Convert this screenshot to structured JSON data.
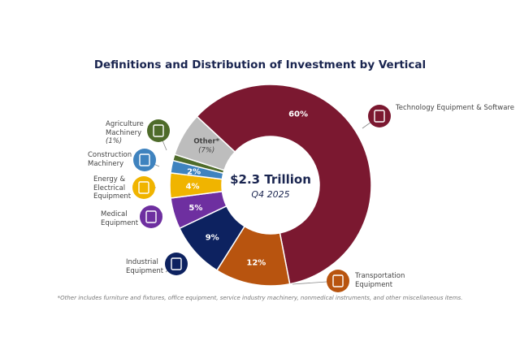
{
  "chart_data": {
    "type": "pie",
    "title": "Definitions and Distribution of Investment by Vertical",
    "center_text": "$2.3 Trillion",
    "center_subtext": "Q4 2025",
    "slices": [
      {
        "name": "Technology Equipment & Software",
        "value": 60,
        "label": "60%",
        "color": "#7b1830",
        "icon": "tablet-gears-icon"
      },
      {
        "name": "Transportation Equipment",
        "value": 12,
        "label": "12%",
        "color": "#b8540f",
        "icon": "truck-icon"
      },
      {
        "name": "Industrial Equipment",
        "value": 9,
        "label": "9%",
        "color": "#0d2260",
        "icon": "factory-icon"
      },
      {
        "name": "Medical Equipment",
        "value": 5,
        "label": "5%",
        "color": "#6e2fa0",
        "icon": "caduceus-icon"
      },
      {
        "name": "Energy & Electrical Equipment",
        "value": 4,
        "label": "4%",
        "color": "#f0b400",
        "icon": "lightning-icon"
      },
      {
        "name": "Construction Machinery",
        "value": 2,
        "label": "2%",
        "color": "#3f83bf",
        "icon": "tools-icon"
      },
      {
        "name": "Agriculture Machinery",
        "value": 1,
        "label": "(1%)",
        "color": "#4e6b2a",
        "icon": "silo-icon"
      },
      {
        "name": "Other*",
        "value": 7,
        "label": "(7%)",
        "color": "#bdbdbd"
      }
    ],
    "footnote": "*Other includes furniture and fixtures, office equipment, service industry machinery, nonmedical instruments, and other miscellaneous items."
  }
}
